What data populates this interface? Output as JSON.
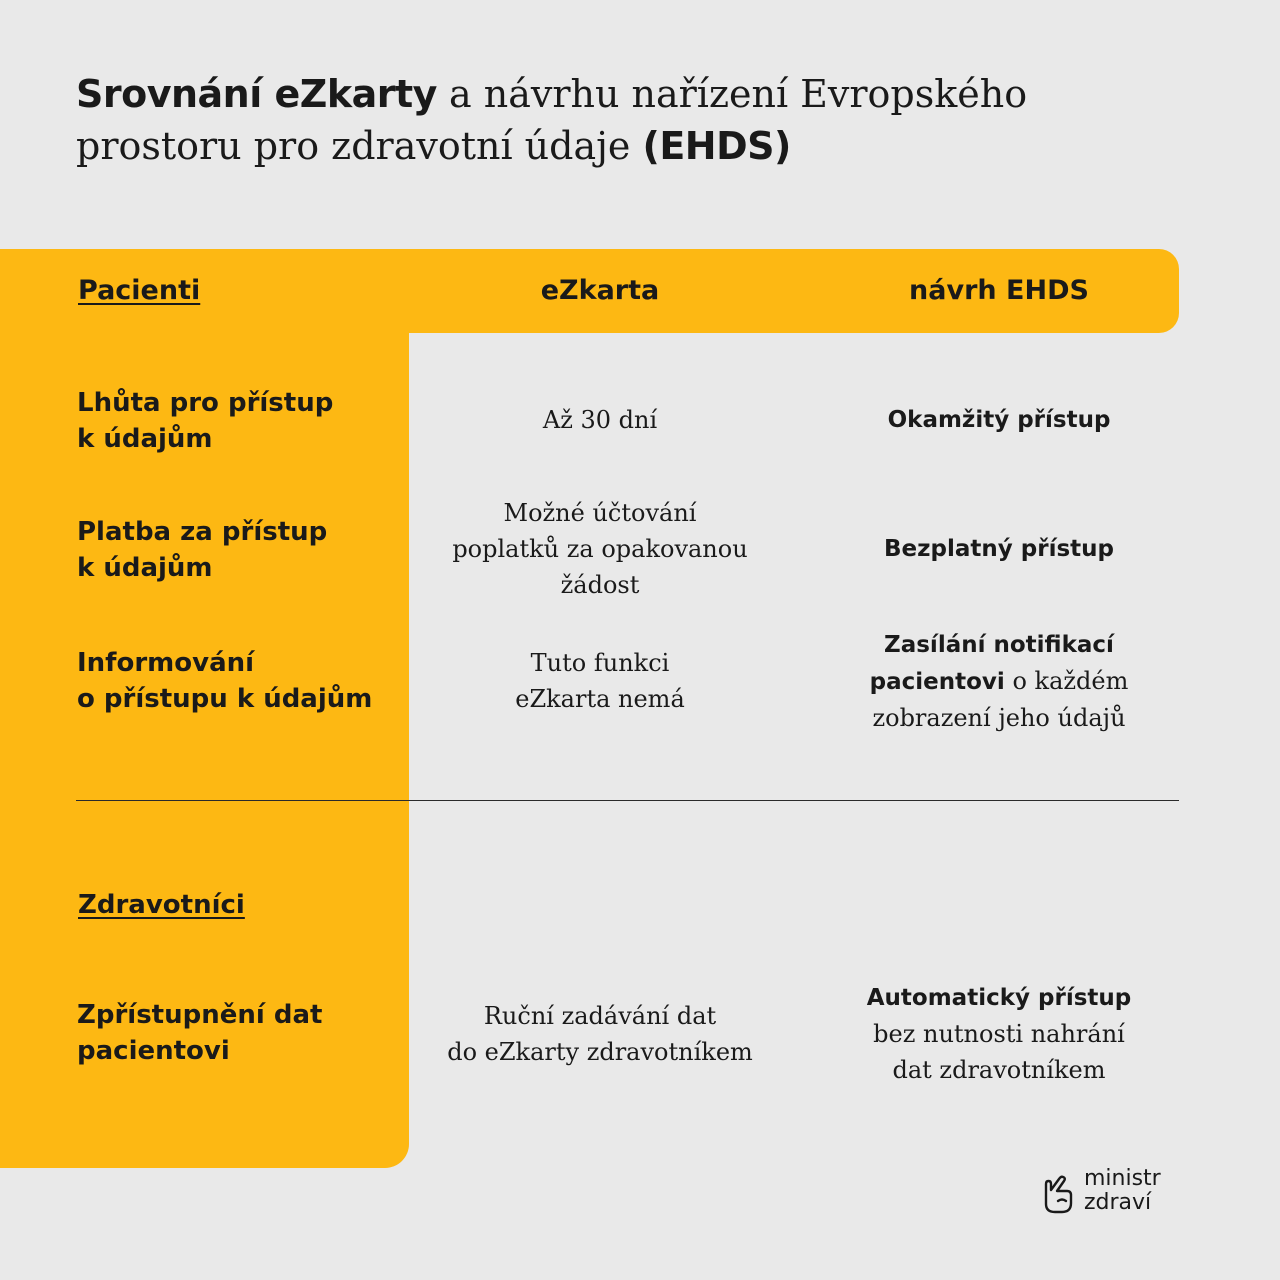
{
  "title": {
    "bold_1": "Srovnání eZkarty",
    "rest_1": " a návrhu nařízení Evropského prostoru pro zdravotní údaje ",
    "bold_2": "(EHDS)"
  },
  "table": {
    "header": {
      "section": "Pacienti",
      "col_1": "eZkarta",
      "col_2": "návrh EHDS"
    },
    "patients_rows": [
      {
        "label": [
          "Lhůta pro přístup",
          "k údajům"
        ],
        "ezkarta": [
          "Až 30 dní"
        ],
        "ehds_bold": [
          "Okamžitý přístup"
        ]
      },
      {
        "label": [
          "Platba za přístup",
          "k údajům"
        ],
        "ezkarta": [
          "Možné účtování",
          "poplatků za opakovanou",
          "žádost"
        ],
        "ehds_bold": [
          "Bezplatný přístup"
        ]
      },
      {
        "label": [
          "Informování",
          "o přístupu k údajům"
        ],
        "ezkarta": [
          "Tuto funkci",
          "eZkarta nemá"
        ],
        "ehds_bold_1": "Zasílání notifikací",
        "ehds_bold_2": "pacientovi",
        "ehds_rest_2": " o každém",
        "ehds_rest_3": "zobrazení jeho údajů"
      }
    ],
    "section_2": "Zdravotníci",
    "professionals_rows": [
      {
        "label": [
          "Zpřístupnění dat",
          "pacientovi"
        ],
        "ezkarta": [
          "Ruční zadávání dat",
          "do eZkarty zdravotníkem"
        ],
        "ehds_bold": "Automatický přístup",
        "ehds_rest": [
          "bez nutnosti nahrání",
          "dat zdravotníkem"
        ]
      }
    ]
  },
  "logo": {
    "line_1": "ministr",
    "line_2": "zdraví",
    "icon": "hand-icon"
  },
  "colors": {
    "background": "#e9e9e9",
    "accent": "#fdb813",
    "text": "#1a1a1a"
  }
}
